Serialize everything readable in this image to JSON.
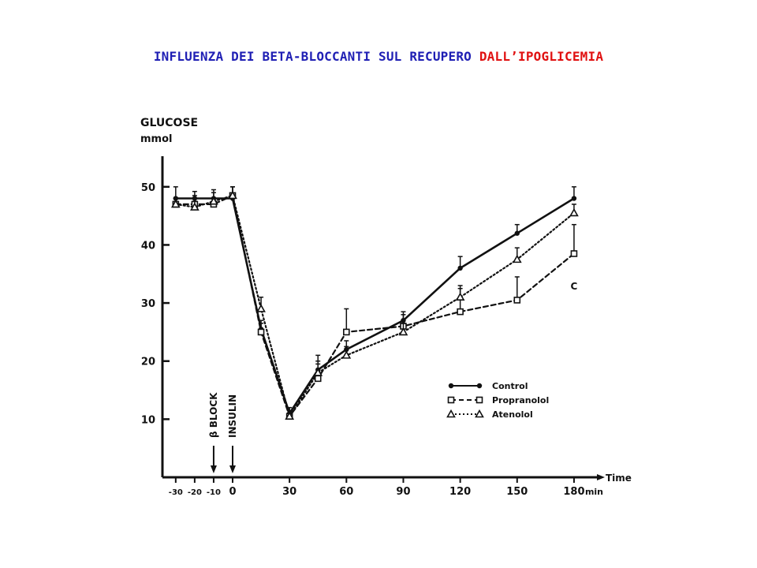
{
  "title": {
    "part1": "INFLUENZA DEI BETA-BLOCCANTI SUL RECUPERO ",
    "part2": "DALL’IPOGLICEMIA"
  },
  "colors": {
    "title_blue": "#1f1fb4",
    "title_red": "#e01010",
    "ink": "#111111"
  },
  "chart_data": {
    "type": "line",
    "ylabel_line1": "GLUCOSE",
    "ylabel_line2": "mmol",
    "xlabel": "Time",
    "x_unit": "min",
    "x_ticks": [
      "-30",
      "-20",
      "-10",
      "0",
      "30",
      "60",
      "90",
      "120",
      "150",
      "180"
    ],
    "y_ticks": [
      "50",
      "40",
      "30",
      "20",
      "10"
    ],
    "xlim": [
      -37,
      190
    ],
    "ylim": [
      0,
      55
    ],
    "markers": [
      {
        "label": "β BLOCK",
        "x": -10
      },
      {
        "label": "INSULIN",
        "x": 0
      }
    ],
    "series": [
      {
        "name": "Control",
        "style": "solid",
        "marker": "dot",
        "x": [
          -30,
          -20,
          -10,
          0,
          15,
          30,
          45,
          60,
          90,
          120,
          150,
          180
        ],
        "y": [
          48,
          48,
          48,
          48,
          25.5,
          11,
          18.5,
          22,
          27,
          36,
          42,
          48
        ],
        "err": [
          2,
          1.2,
          1.5,
          2,
          1.5,
          1,
          1.5,
          1.5,
          1.5,
          2,
          1.5,
          2
        ]
      },
      {
        "name": "Propranolol",
        "style": "dashed",
        "marker": "square",
        "x": [
          -30,
          -20,
          -10,
          0,
          15,
          30,
          45,
          60,
          90,
          120,
          150,
          180
        ],
        "y": [
          47,
          47,
          47,
          48.5,
          25,
          10.5,
          17,
          25,
          26,
          28.5,
          30.5,
          38.5
        ],
        "err": [
          1,
          1.5,
          1,
          1.5,
          1.5,
          1,
          4,
          4,
          2,
          4,
          4,
          5
        ]
      },
      {
        "name": "Atenolol",
        "style": "dotted",
        "marker": "triangle",
        "x": [
          -30,
          -20,
          -10,
          0,
          15,
          30,
          45,
          60,
          90,
          120,
          150,
          180
        ],
        "y": [
          47,
          46.5,
          47.5,
          48.5,
          29,
          10.5,
          18,
          21,
          25,
          31,
          37.5,
          45.5
        ],
        "err": [
          1,
          1,
          1.5,
          1.5,
          2,
          1,
          1.5,
          1.5,
          1.5,
          2,
          2,
          1.5
        ]
      }
    ],
    "annotations": [
      {
        "text": "C",
        "x": 180,
        "y": 33
      }
    ],
    "legend_position": "right"
  }
}
